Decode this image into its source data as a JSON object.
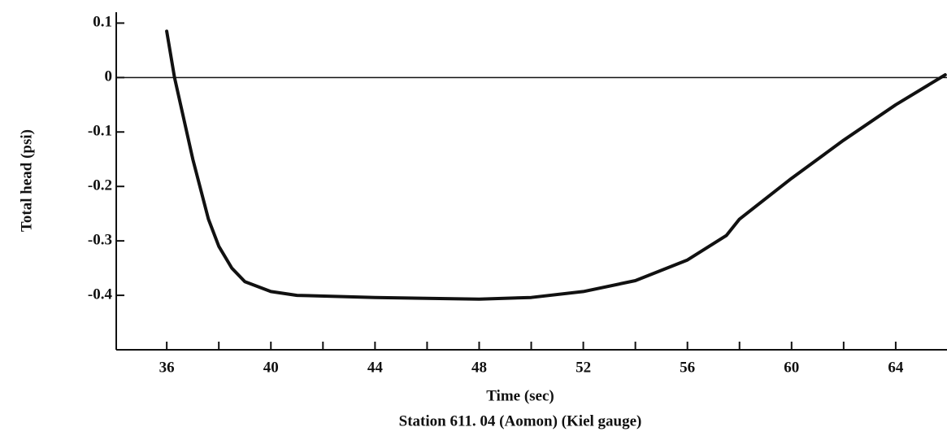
{
  "chart_data": {
    "type": "line",
    "x_label": "Time (sec)",
    "y_label": "Total head (psi)",
    "caption": "Station 611. 04 (Aomon) (Kiel gauge)",
    "x": [
      36,
      36.3,
      37,
      37.6,
      38,
      38.5,
      39,
      40,
      41,
      44,
      48,
      50,
      52,
      54,
      56,
      57.5,
      58,
      60,
      62,
      64,
      65.9
    ],
    "series": [
      {
        "color": "#111111",
        "values": [
          0.085,
          0.0,
          -0.15,
          -0.26,
          -0.31,
          -0.35,
          -0.375,
          -0.393,
          -0.4,
          -0.404,
          -0.407,
          -0.404,
          -0.393,
          -0.373,
          -0.335,
          -0.29,
          -0.26,
          -0.185,
          -0.115,
          -0.05,
          0.005
        ]
      }
    ],
    "xlim": [
      34.06,
      65.97
    ],
    "ylim": [
      -0.5,
      0.12
    ],
    "xticks": [
      36,
      40,
      44,
      48,
      52,
      56,
      60,
      64
    ],
    "xticks_minor": [
      38,
      42,
      46,
      50,
      54,
      58,
      62
    ],
    "yticks": [
      0.1,
      0,
      -0.1,
      -0.2,
      -0.3,
      -0.4
    ],
    "zero_line": true
  }
}
